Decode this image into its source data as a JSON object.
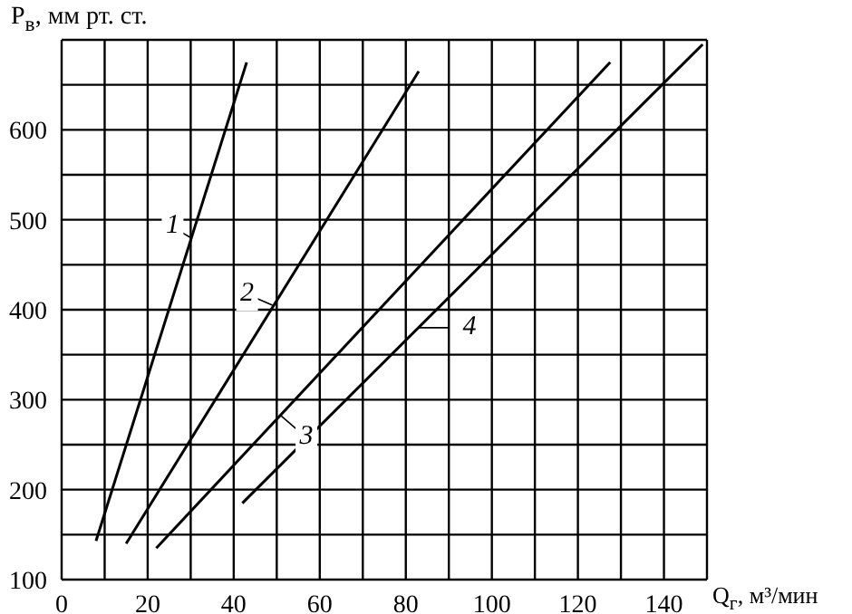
{
  "chart_data": {
    "type": "line",
    "xlabel": "Q$_{г}$, м³/мин",
    "ylabel": "P$_{в}$, мм рт. ст.",
    "xlim": [
      0,
      150
    ],
    "ylim": [
      100,
      700
    ],
    "xticks": [
      0,
      {
        "value": 10,
        "label": null
      },
      20,
      {
        "value": 30,
        "label": null
      },
      40,
      {
        "value": 50,
        "label": null
      },
      60,
      {
        "value": 70,
        "label": null
      },
      80,
      {
        "value": 90,
        "label": null
      },
      100,
      {
        "value": 110,
        "label": null
      },
      120,
      {
        "value": 130,
        "label": null
      },
      140,
      {
        "value": 150,
        "label": null
      }
    ],
    "yticks": [
      100,
      {
        "value": 150,
        "label": null
      },
      200,
      {
        "value": 250,
        "label": null
      },
      300,
      {
        "value": 350,
        "label": null
      },
      400,
      {
        "value": 450,
        "label": null
      },
      500,
      {
        "value": 550,
        "label": null
      },
      600,
      {
        "value": 650,
        "label": null
      },
      {
        "value": 700,
        "label": null
      }
    ],
    "grid": true,
    "marker": "none",
    "line_style": "solid",
    "legend": false,
    "series": [
      {
        "color": "#000000",
        "x": [
          8,
          43
        ],
        "values": [
          143,
          675
        ]
      },
      {
        "color": "#000000",
        "x": [
          15,
          83
        ],
        "values": [
          140,
          665
        ]
      },
      {
        "color": "#000000",
        "x": [
          22,
          127.5
        ],
        "values": [
          135,
          675
        ]
      },
      {
        "color": "#000000",
        "x": [
          42,
          149
        ],
        "values": [
          185,
          695
        ]
      }
    ],
    "annotations": [
      {
        "text": "1",
        "x": 30,
        "y": 480
      },
      {
        "text": "2",
        "x": 49,
        "y": 405
      },
      {
        "text": "3",
        "x": 51,
        "y": 282
      },
      {
        "text": "4",
        "x": 83,
        "y": 380
      }
    ]
  }
}
